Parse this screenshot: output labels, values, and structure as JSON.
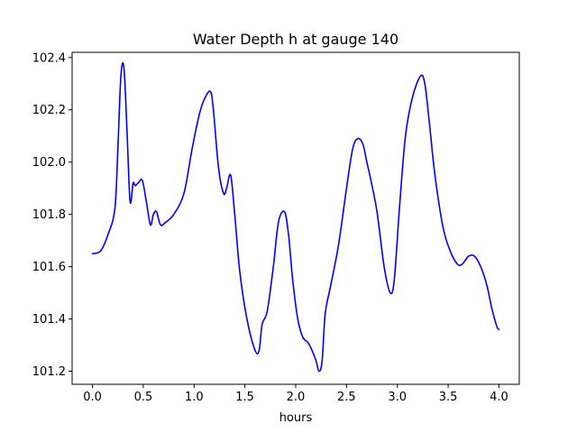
{
  "chart_data": {
    "type": "line",
    "title": "Water Depth h at gauge 140",
    "xlabel": "hours",
    "ylabel": "",
    "xlim": [
      -0.2,
      4.2
    ],
    "ylim": [
      101.15,
      102.42
    ],
    "xticks": [
      0.0,
      0.5,
      1.0,
      1.5,
      2.0,
      2.5,
      3.0,
      3.5,
      4.0
    ],
    "xtick_labels": [
      "0.0",
      "0.5",
      "1.0",
      "1.5",
      "2.0",
      "2.5",
      "3.0",
      "3.5",
      "4.0"
    ],
    "yticks": [
      101.2,
      101.4,
      101.6,
      101.8,
      102.0,
      102.2,
      102.4
    ],
    "ytick_labels": [
      "101.2",
      "101.4",
      "101.6",
      "101.8",
      "102.0",
      "102.2",
      "102.4"
    ],
    "grid": false,
    "series": [
      {
        "color": "#0000ff",
        "x": [
          0.0,
          0.08,
          0.15,
          0.22,
          0.25,
          0.28,
          0.31,
          0.34,
          0.37,
          0.4,
          0.42,
          0.45,
          0.49,
          0.53,
          0.57,
          0.6,
          0.63,
          0.67,
          0.72,
          0.8,
          0.9,
          0.98,
          1.05,
          1.1,
          1.16,
          1.19,
          1.24,
          1.29,
          1.32,
          1.36,
          1.4,
          1.45,
          1.52,
          1.6,
          1.64,
          1.67,
          1.72,
          1.78,
          1.83,
          1.89,
          1.93,
          1.97,
          2.02,
          2.07,
          2.12,
          2.16,
          2.2,
          2.23,
          2.26,
          2.29,
          2.34,
          2.42,
          2.5,
          2.56,
          2.61,
          2.66,
          2.7,
          2.74,
          2.8,
          2.87,
          2.93,
          2.97,
          3.02,
          3.08,
          3.15,
          3.23,
          3.27,
          3.31,
          3.37,
          3.45,
          3.52,
          3.59,
          3.64,
          3.7,
          3.76,
          3.82,
          3.88,
          3.93,
          3.98,
          4.0
        ],
        "y": [
          101.65,
          101.66,
          101.72,
          101.82,
          102.05,
          102.33,
          102.36,
          102.12,
          101.85,
          101.92,
          101.91,
          101.92,
          101.93,
          101.85,
          101.76,
          101.8,
          101.81,
          101.76,
          101.77,
          101.8,
          101.88,
          102.05,
          102.18,
          102.24,
          102.27,
          102.2,
          101.98,
          101.88,
          101.9,
          101.95,
          101.8,
          101.58,
          101.4,
          101.28,
          101.28,
          101.38,
          101.43,
          101.6,
          101.77,
          101.81,
          101.72,
          101.55,
          101.4,
          101.33,
          101.31,
          101.28,
          101.24,
          101.2,
          101.24,
          101.42,
          101.52,
          101.68,
          101.9,
          102.05,
          102.09,
          102.07,
          102.0,
          101.93,
          101.81,
          101.6,
          101.5,
          101.55,
          101.82,
          102.1,
          102.25,
          102.33,
          102.3,
          102.17,
          101.95,
          101.75,
          101.66,
          101.61,
          101.61,
          101.64,
          101.64,
          101.6,
          101.53,
          101.44,
          101.37,
          101.36
        ]
      }
    ]
  }
}
